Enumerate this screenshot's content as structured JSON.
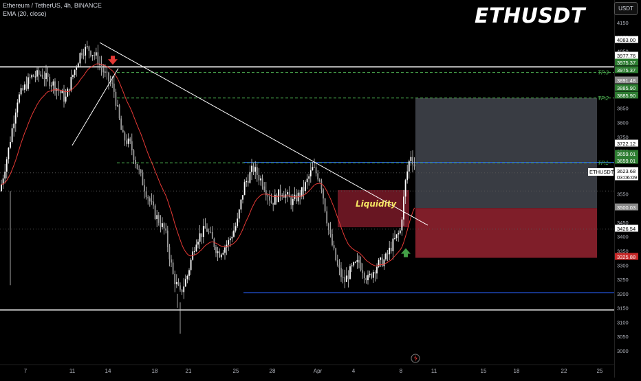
{
  "header": {
    "symbol_line": "Ethereum / TetherUS, 4h, BINANCE",
    "indicator_line": "EMA (20, close)",
    "watermark": "ETHUSDT",
    "currency_button": "USDT"
  },
  "chart_data": {
    "type": "candlestick",
    "title": "Ethereum / TetherUS, 4h, BINANCE",
    "indicator": "EMA (20, close)",
    "y_axis": {
      "range": [
        2980,
        4170
      ],
      "ticks": [
        4150,
        4100,
        4050,
        3950,
        3850,
        3800,
        3750,
        3700,
        3550,
        3450,
        3400,
        3350,
        3300,
        3250,
        3200,
        3150,
        3100,
        3050,
        3000
      ]
    },
    "x_axis": {
      "ticks": [
        "7",
        "11",
        "14",
        "18",
        "21",
        "25",
        "28",
        "Apr",
        "4",
        "8",
        "11",
        "15",
        "18",
        "22",
        "25"
      ]
    },
    "price_labels": [
      {
        "value": "4083.00",
        "price": 4083,
        "color": "#ffffff",
        "text_color": "#000000"
      },
      {
        "value": "3977.76",
        "price": 3977.76,
        "color": "#ffffff",
        "text_color": "#000000"
      },
      {
        "value": "3975.37",
        "price": 3975.37,
        "color": "#2e7d32",
        "text_color": "#ffffff"
      },
      {
        "value": "3975.37",
        "price": 3975.37,
        "color": "#2e7d32",
        "text_color": "#ffffff"
      },
      {
        "value": "3891.48",
        "price": 3891.48,
        "color": "#8a8a8a",
        "text_color": "#ffffff"
      },
      {
        "value": "3885.90",
        "price": 3885.9,
        "color": "#2e7d32",
        "text_color": "#ffffff"
      },
      {
        "value": "3885.90",
        "price": 3885.9,
        "color": "#2e7d32",
        "text_color": "#ffffff"
      },
      {
        "value": "3722.12",
        "price": 3722.12,
        "color": "#ffffff",
        "text_color": "#000000"
      },
      {
        "value": "3659.01",
        "price": 3659.01,
        "color": "#2e7d32",
        "text_color": "#ffffff"
      },
      {
        "value": "3659.01",
        "price": 3659.01,
        "color": "#2e7d32",
        "text_color": "#ffffff"
      },
      {
        "value": "3623.68",
        "price": 3623.68,
        "color": "#ffffff",
        "text_color": "#000000"
      },
      {
        "value": "03:06:09",
        "price": 3608,
        "color": "#ffffff",
        "text_color": "#000000"
      },
      {
        "value": "3500.03",
        "price": 3500.03,
        "color": "#8a8a8a",
        "text_color": "#ffffff"
      },
      {
        "value": "3426.54",
        "price": 3426.54,
        "color": "#ffffff",
        "text_color": "#000000"
      },
      {
        "value": "3325.88",
        "price": 3325.88,
        "color": "#c62828",
        "text_color": "#ffffff"
      }
    ],
    "symbol_tag": "ETHUSDT",
    "horizontal_levels": [
      {
        "price": 3995,
        "color": "#d0d0d0",
        "style": "solid",
        "width": 2,
        "extent": "full"
      },
      {
        "price": 3143,
        "color": "#d0d0d0",
        "style": "solid",
        "width": 2,
        "extent": "full"
      },
      {
        "price": 3660,
        "color": "#2962ff",
        "style": "solid",
        "width": 1,
        "extent": "from-x-25"
      },
      {
        "price": 3203,
        "color": "#2962ff",
        "style": "solid",
        "width": 1,
        "extent": "from-x-25"
      },
      {
        "price": 3975.37,
        "color": "#4caf50",
        "style": "dashed",
        "width": 1,
        "extent": "from-x-14"
      },
      {
        "price": 3885.9,
        "color": "#4caf50",
        "style": "dashed",
        "width": 1,
        "extent": "from-x-14"
      },
      {
        "price": 3659.01,
        "color": "#4caf50",
        "style": "dashed",
        "width": 1,
        "extent": "from-x-14"
      }
    ],
    "take_profit_labels": [
      {
        "text": "TP.3",
        "price": 3975.37
      },
      {
        "text": "TP.2",
        "price": 3885.9
      },
      {
        "text": "TP.1",
        "price": 3659.01
      }
    ],
    "annotations": {
      "liquidity_text": "Liquidity",
      "liquidity_zone": {
        "price_top": 3563,
        "price_bottom": 3433
      },
      "target_zone": {
        "price_top": 3885.9,
        "price_bottom": 3500.03
      },
      "stop_zone": {
        "price_top": 3500.03,
        "price_bottom": 3325.88
      }
    }
  }
}
